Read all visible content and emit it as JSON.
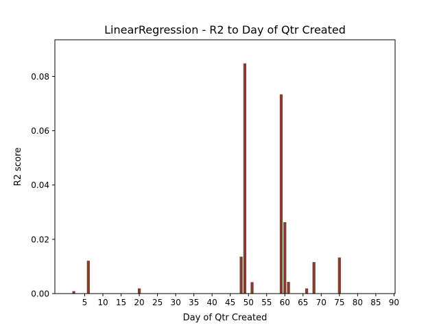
{
  "chart_data": {
    "type": "bar",
    "title": "LinearRegression - R2 to Day of Qtr Created",
    "xlabel": "Day of Qtr Created",
    "ylabel": "R2 score",
    "xlim": [
      -3.2,
      90.3
    ],
    "ylim": [
      0,
      0.0935
    ],
    "xticks": [
      5,
      10,
      15,
      20,
      25,
      30,
      35,
      40,
      45,
      50,
      55,
      60,
      65,
      70,
      75,
      80,
      85,
      90
    ],
    "yticks": [
      0.0,
      0.02,
      0.04,
      0.06,
      0.08
    ],
    "ytick_labels": [
      "0.00",
      "0.02",
      "0.04",
      "0.06",
      "0.08"
    ],
    "bar_color": "#7f3f31",
    "bar_width": 0.8,
    "x": [
      2,
      6,
      20,
      48,
      49,
      51,
      59,
      60,
      61,
      66,
      68,
      75
    ],
    "values": [
      0.0009,
      0.0121,
      0.0019,
      0.0136,
      0.0848,
      0.0042,
      0.0734,
      0.0263,
      0.0043,
      0.0019,
      0.0116,
      0.0133
    ],
    "grid": false,
    "legend": "none"
  }
}
